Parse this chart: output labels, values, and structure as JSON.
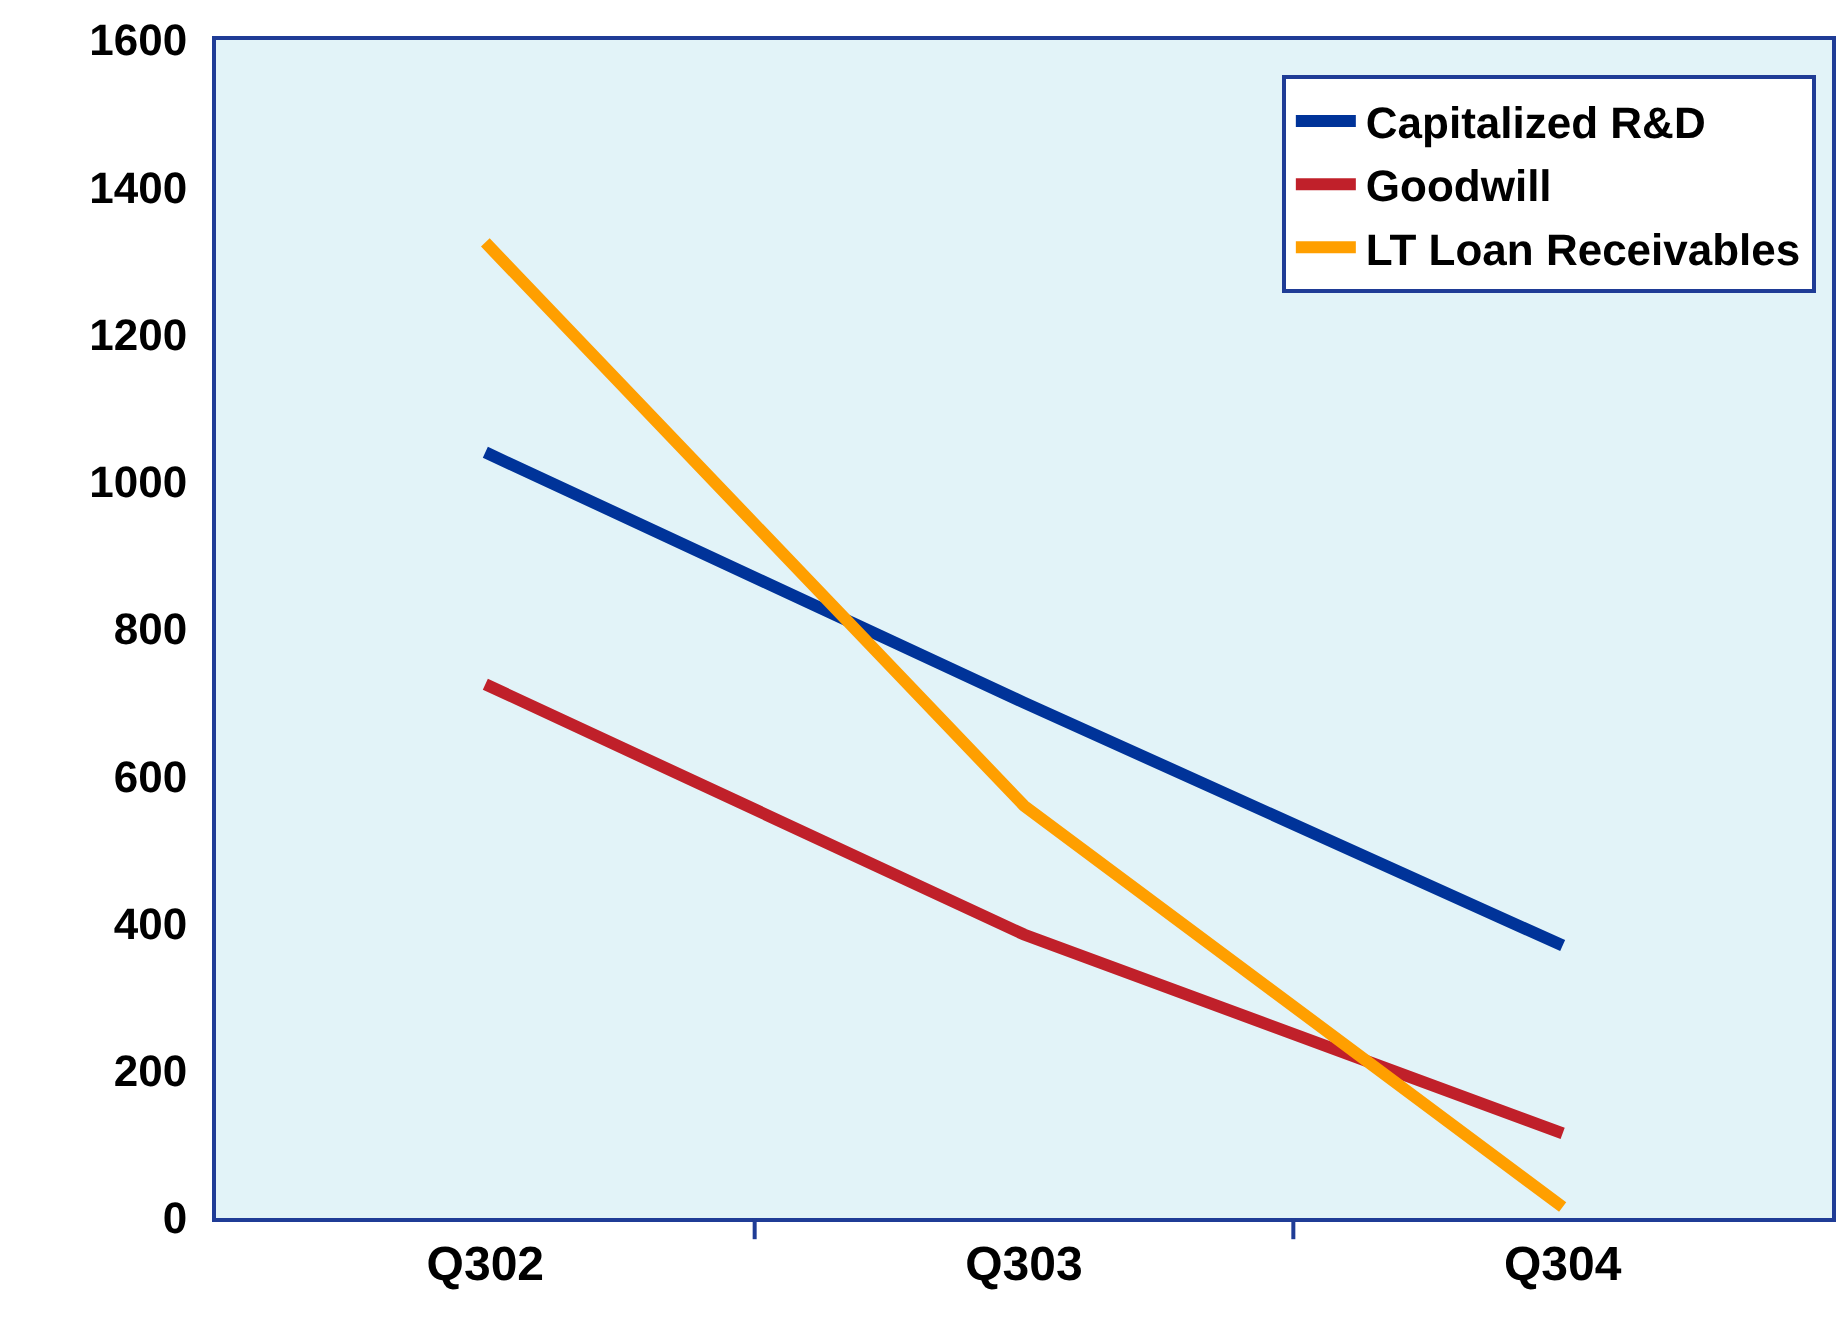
{
  "chart_data": {
    "type": "line",
    "categories": [
      "Q302",
      "Q303",
      "Q304"
    ],
    "series": [
      {
        "name": "Capitalized R&D",
        "color": "#003399",
        "values": [
          1040,
          700,
          370
        ]
      },
      {
        "name": "Goodwill",
        "color": "#c0202a",
        "values": [
          725,
          385,
          115
        ]
      },
      {
        "name": "LT Loan Receivables",
        "color": "#ff9f00",
        "values": [
          1325,
          560,
          15
        ]
      }
    ],
    "ylim": [
      0,
      1600
    ],
    "yticks": [
      0,
      200,
      400,
      600,
      800,
      1000,
      1200,
      1400,
      1600
    ],
    "grid": false,
    "legend": "top right",
    "marker": "none",
    "line_style": "solid"
  }
}
